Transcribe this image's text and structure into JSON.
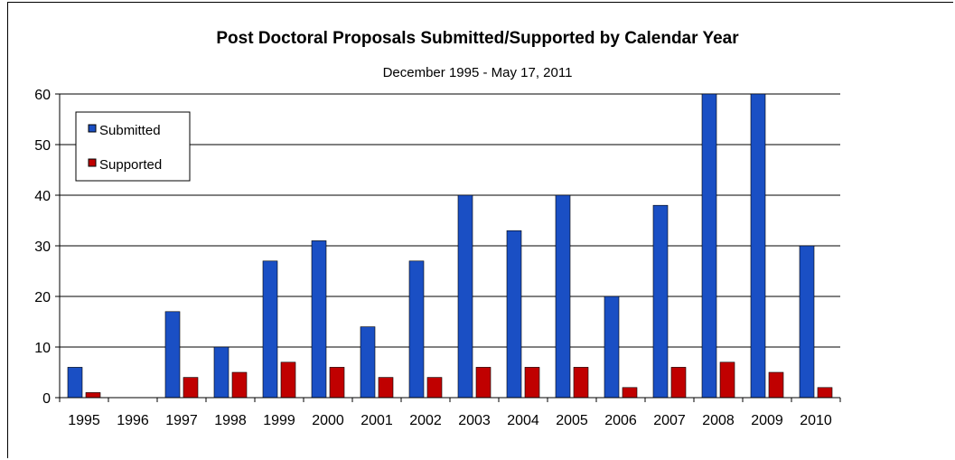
{
  "chart_data": {
    "type": "bar",
    "title": "Post Doctoral Proposals Submitted/Supported by Calendar Year",
    "subtitle": "December 1995 - May 17, 2011",
    "xlabel": "",
    "ylabel": "",
    "ylim": [
      0,
      60
    ],
    "yticks": [
      0,
      10,
      20,
      30,
      40,
      50,
      60
    ],
    "grid": true,
    "legend_position": "top-left",
    "categories": [
      "1995",
      "1996",
      "1997",
      "1998",
      "1999",
      "2000",
      "2001",
      "2002",
      "2003",
      "2004",
      "2005",
      "2006",
      "2007",
      "2008",
      "2009",
      "2010"
    ],
    "series": [
      {
        "name": "Submitted",
        "color": "#1a4fc4",
        "values": [
          6,
          0,
          17,
          10,
          27,
          31,
          14,
          27,
          40,
          33,
          40,
          20,
          38,
          60,
          60,
          30
        ]
      },
      {
        "name": "Supported",
        "color": "#c00000",
        "values": [
          1,
          0,
          4,
          5,
          7,
          6,
          4,
          4,
          6,
          6,
          6,
          2,
          6,
          7,
          5,
          2
        ]
      }
    ]
  }
}
